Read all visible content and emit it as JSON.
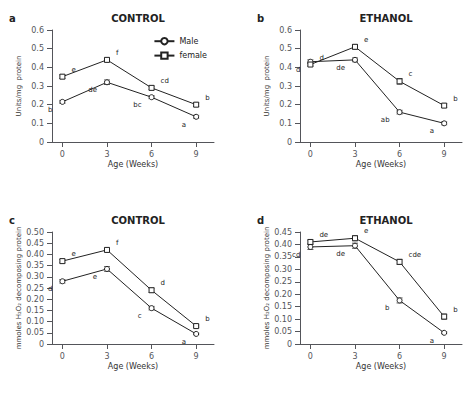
{
  "chart_data": [
    {
      "type": "line",
      "title": "CONTROL",
      "label": "a",
      "xlabel": "Age (Weeks)",
      "ylabel": "Units/mg  protein",
      "x": [
        0,
        3,
        6,
        9
      ],
      "xlim": [
        -0.7,
        10.2
      ],
      "xticks": [
        0,
        3,
        6,
        9
      ],
      "ylim": [
        0,
        0.6
      ],
      "yticks": [
        0,
        0.1,
        0.2,
        0.3,
        0.4,
        0.5,
        0.6
      ],
      "grid": false,
      "legend": "upper right",
      "series": [
        {
          "name": "Male",
          "color": "#222222",
          "marker": "circle",
          "values": [
            0.215,
            0.32,
            0.24,
            0.135
          ],
          "errors": [
            0.008,
            0.012,
            0.008,
            0.008
          ],
          "point_labels": [
            "b",
            "de",
            "bc",
            "a"
          ]
        },
        {
          "name": "female",
          "color": "#222222",
          "marker": "square",
          "values": [
            0.35,
            0.44,
            0.29,
            0.2
          ],
          "errors": [
            0.01,
            0.01,
            0.01,
            0.01
          ],
          "point_labels": [
            "e",
            "f",
            "cd",
            "b"
          ]
        }
      ]
    },
    {
      "type": "line",
      "title": "ETHANOL",
      "label": "b",
      "xlabel": "Age (Weeks)",
      "ylabel": "Units/mg  protein",
      "x": [
        0,
        3,
        6,
        9
      ],
      "xlim": [
        -0.7,
        10.2
      ],
      "xticks": [
        0,
        3,
        6,
        9
      ],
      "ylim": [
        0,
        0.6
      ],
      "yticks": [
        0,
        0.1,
        0.2,
        0.3,
        0.4,
        0.5,
        0.6
      ],
      "grid": false,
      "series": [
        {
          "name": "Male",
          "color": "#222222",
          "marker": "circle",
          "values": [
            0.43,
            0.44,
            0.16,
            0.1
          ],
          "errors": [
            0.01,
            0.01,
            0.01,
            0.008
          ],
          "point_labels": [
            "d",
            "de",
            "ab",
            "a"
          ]
        },
        {
          "name": "female",
          "color": "#222222",
          "marker": "square",
          "values": [
            0.415,
            0.51,
            0.325,
            0.195
          ],
          "errors": [
            0.008,
            0.012,
            0.015,
            0.01
          ],
          "point_labels": [
            "d",
            "e",
            "c",
            "b"
          ]
        }
      ]
    },
    {
      "type": "line",
      "title": "CONTROL",
      "label": "c",
      "xlabel": "Age (Weeks)",
      "ylabel": "mmoles H₂O₂ decomposing protein",
      "x": [
        0,
        3,
        6,
        9
      ],
      "xlim": [
        -0.7,
        10.2
      ],
      "xticks": [
        0,
        3,
        6,
        9
      ],
      "ylim": [
        0,
        0.5
      ],
      "yticks": [
        0,
        0.05,
        {
          "value": 0.1,
          "label": "0.10"
        },
        0.15,
        {
          "value": 0.2,
          "label": "0.20"
        },
        0.25,
        {
          "value": 0.3,
          "label": "0.30"
        },
        0.35,
        {
          "value": 0.4,
          "label": "0.40"
        },
        0.45,
        {
          "value": 0.5,
          "label": "0.50"
        }
      ],
      "grid": false,
      "series": [
        {
          "name": "Male",
          "color": "#222222",
          "marker": "circle",
          "values": [
            0.28,
            0.335,
            0.16,
            0.045
          ],
          "errors": [
            0.008,
            0.01,
            0.008,
            0.004
          ],
          "point_labels": [
            "d",
            "e",
            "c",
            "a"
          ]
        },
        {
          "name": "female",
          "color": "#222222",
          "marker": "square",
          "values": [
            0.37,
            0.42,
            0.24,
            0.08
          ],
          "errors": [
            0.008,
            0.008,
            0.01,
            0.005
          ],
          "point_labels": [
            "e",
            "f",
            "d",
            "b"
          ]
        }
      ]
    },
    {
      "type": "line",
      "title": "ETHANOL",
      "label": "d",
      "xlabel": "Age (Weeks)",
      "ylabel": "mmoles H₂O₂ decomposing protein",
      "x": [
        0,
        3,
        6,
        9
      ],
      "xlim": [
        -0.7,
        10.2
      ],
      "xticks": [
        0,
        3,
        6,
        9
      ],
      "ylim": [
        0,
        0.45
      ],
      "yticks": [
        0,
        0.05,
        {
          "value": 0.1,
          "label": "0.10"
        },
        0.15,
        {
          "value": 0.2,
          "label": "0.20"
        },
        0.25,
        {
          "value": 0.3,
          "label": "0.30"
        },
        0.35,
        {
          "value": 0.4,
          "label": "0.40"
        },
        0.45
      ],
      "grid": false,
      "series": [
        {
          "name": "Male",
          "color": "#222222",
          "marker": "circle",
          "values": [
            0.39,
            0.395,
            0.175,
            0.045
          ],
          "errors": [
            0.01,
            0.01,
            0.01,
            0.004
          ],
          "point_labels": [
            "cd",
            "de",
            "b",
            "a"
          ]
        },
        {
          "name": "female",
          "color": "#222222",
          "marker": "square",
          "values": [
            0.41,
            0.425,
            0.33,
            0.11
          ],
          "errors": [
            0.008,
            0.01,
            0.01,
            0.01
          ],
          "point_labels": [
            "de",
            "e",
            "cde",
            "b"
          ]
        }
      ]
    }
  ]
}
